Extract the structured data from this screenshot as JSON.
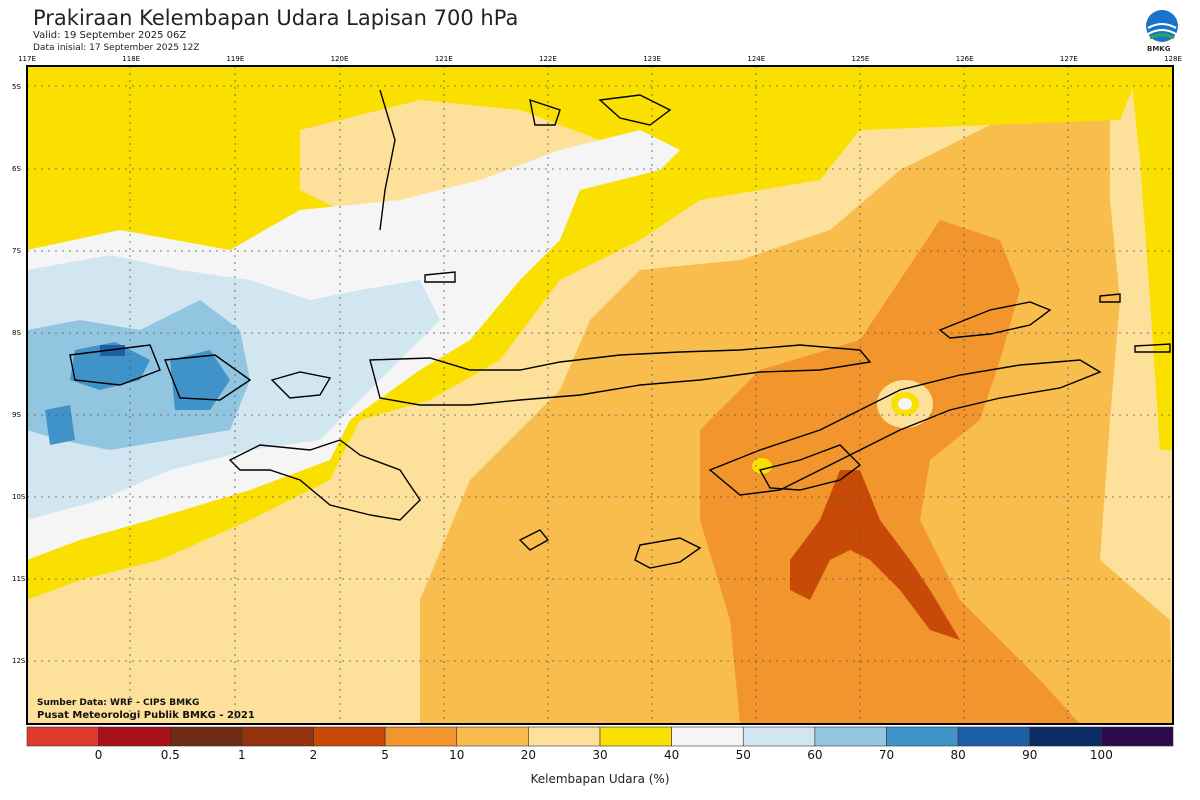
{
  "header": {
    "title": "Prakiraan Kelembapan Udara Lapisan 700 hPa",
    "valid": "Valid: 19 September 2025 06Z",
    "init": "Data inisial: 17 September 2025 12Z",
    "logo_text": "BMKG"
  },
  "map": {
    "lon_ticks": [
      "117E",
      "118E",
      "119E",
      "120E",
      "121E",
      "122E",
      "123E",
      "124E",
      "125E",
      "126E",
      "127E",
      "128E"
    ],
    "lat_ticks": [
      "5S",
      "6S",
      "7S",
      "8S",
      "9S",
      "10S",
      "11S",
      "12S"
    ]
  },
  "footer": {
    "source": "Sumber Data: WRF - CIPS BMKG",
    "credit": "Pusat Meteorologi Publik BMKG - 2021"
  },
  "colorbar": {
    "title": "Kelembapan Udara (%)",
    "labels": [
      "0",
      "0.5",
      "1",
      "2",
      "5",
      "10",
      "20",
      "30",
      "40",
      "50",
      "60",
      "70",
      "80",
      "90",
      "100"
    ],
    "colors": [
      "#e03a2f",
      "#a8111a",
      "#6e2a12",
      "#92330e",
      "#c84a07",
      "#f2952c",
      "#f9bd4d",
      "#fde19a",
      "#fae000",
      "#f5f5f5",
      "#d2e6f1",
      "#92c5e0",
      "#3f93c8",
      "#1f5fa6",
      "#0a2b63",
      "#2a0a4a"
    ]
  }
}
